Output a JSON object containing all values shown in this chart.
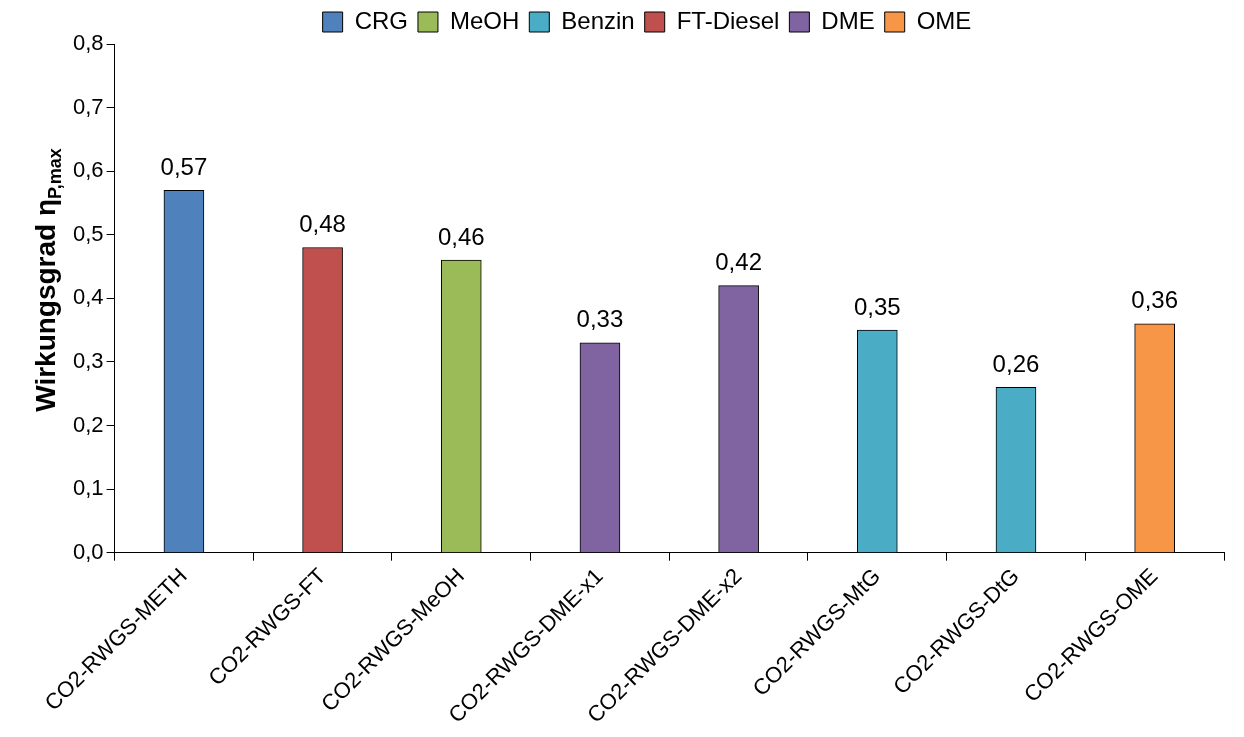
{
  "chart_data": {
    "type": "bar",
    "ylabel": "Wirkungsgrad η$_{P,max}$",
    "categories": [
      "CO2-RWGS-METH",
      "CO2-RWGS-FT",
      "CO2-RWGS-MeOH",
      "CO2-RWGS-DME-x1",
      "CO2-RWGS-DME-x2",
      "CO2-RWGS-MtG",
      "CO2-RWGS-DtG",
      "CO2-RWGS-OME"
    ],
    "series": [
      {
        "name": "CRG",
        "color": "#4f81bd",
        "values": [
          0.57,
          null,
          null,
          null,
          null,
          null,
          null,
          null
        ],
        "value_labels": [
          "0,57",
          null,
          null,
          null,
          null,
          null,
          null,
          null
        ]
      },
      {
        "name": "MeOH",
        "color": "#9bbb59",
        "values": [
          null,
          null,
          0.46,
          null,
          null,
          null,
          null,
          null
        ],
        "value_labels": [
          null,
          null,
          "0,46",
          null,
          null,
          null,
          null,
          null
        ]
      },
      {
        "name": "Benzin",
        "color": "#4bacc6",
        "values": [
          null,
          null,
          null,
          null,
          null,
          0.35,
          0.26,
          null
        ],
        "value_labels": [
          null,
          null,
          null,
          null,
          null,
          "0,35",
          "0,26",
          null
        ]
      },
      {
        "name": "FT-Diesel",
        "color": "#c0504d",
        "values": [
          null,
          0.48,
          null,
          null,
          null,
          null,
          null,
          null
        ],
        "value_labels": [
          null,
          "0,48",
          null,
          null,
          null,
          null,
          null,
          null
        ]
      },
      {
        "name": "DME",
        "color": "#8064a2",
        "values": [
          null,
          null,
          null,
          0.33,
          0.42,
          null,
          null,
          null
        ],
        "value_labels": [
          null,
          null,
          null,
          "0,33",
          "0,42",
          null,
          null,
          null
        ]
      },
      {
        "name": "OME",
        "color": "#f79646",
        "values": [
          null,
          null,
          null,
          null,
          null,
          null,
          null,
          0.36
        ],
        "value_labels": [
          null,
          null,
          null,
          null,
          null,
          null,
          null,
          "0,36"
        ]
      }
    ],
    "ylim": [
      0,
      0.8
    ],
    "yticks": [
      {
        "value": 0,
        "label": "0,0"
      },
      {
        "value": 0.1,
        "label": "0,1"
      },
      {
        "value": 0.2,
        "label": "0,2"
      },
      {
        "value": 0.3,
        "label": "0,3"
      },
      {
        "value": 0.4,
        "label": "0,4"
      },
      {
        "value": 0.5,
        "label": "0,5"
      },
      {
        "value": 0.6,
        "label": "0,6"
      },
      {
        "value": 0.7,
        "label": "0,7"
      },
      {
        "value": 0.8,
        "label": "0,8"
      }
    ],
    "grid": false,
    "legend": "top"
  }
}
